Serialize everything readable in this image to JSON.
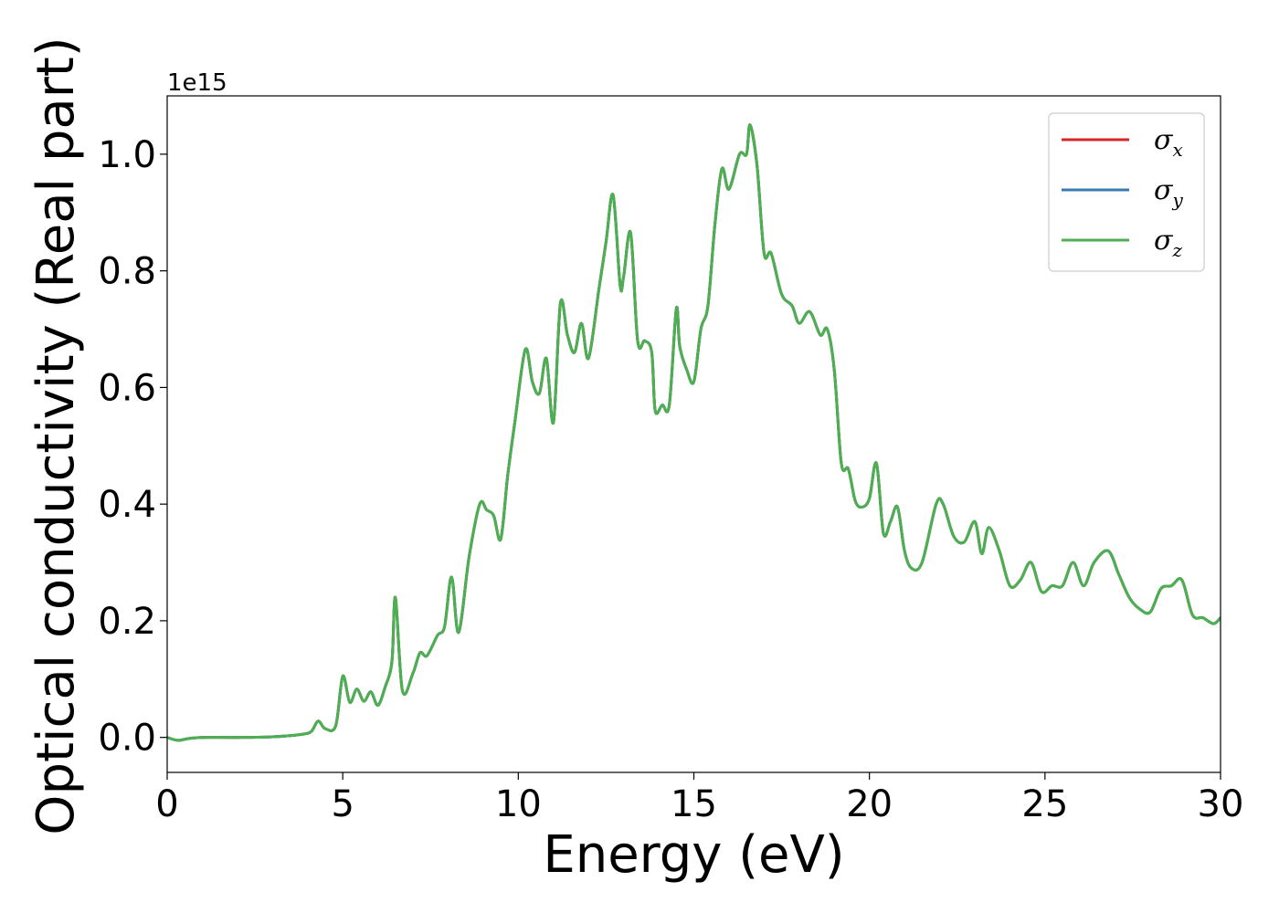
{
  "chart_data": {
    "type": "line",
    "xlabel": "Energy (eV)",
    "ylabel": "Optical conductivity (Real part)",
    "y_offset_text": "1e15",
    "xlim": [
      0,
      30
    ],
    "ylim": [
      -0.06,
      1.1
    ],
    "x_ticks": [
      "0",
      "5",
      "10",
      "15",
      "20",
      "25",
      "30"
    ],
    "y_ticks": [
      "0.0",
      "0.2",
      "0.4",
      "0.6",
      "0.8",
      "1.0"
    ],
    "grid": false,
    "legend_position": "top-right",
    "series": [
      {
        "name": "σx",
        "symbol": "σ",
        "subscript": "x",
        "color": "#d62728"
      },
      {
        "name": "σy",
        "symbol": "σ",
        "subscript": "y",
        "color": "#3a78b0"
      },
      {
        "name": "σz",
        "symbol": "σ",
        "subscript": "z",
        "color": "#4caf50"
      }
    ],
    "x": [
      0,
      0.3,
      0.6,
      1.0,
      2.0,
      3.0,
      3.8,
      4.1,
      4.3,
      4.5,
      4.8,
      5.0,
      5.2,
      5.4,
      5.6,
      5.8,
      6.0,
      6.2,
      6.4,
      6.5,
      6.7,
      7.0,
      7.2,
      7.4,
      7.7,
      7.9,
      8.1,
      8.3,
      8.6,
      8.9,
      9.1,
      9.3,
      9.5,
      9.7,
      9.9,
      10.2,
      10.4,
      10.6,
      10.8,
      11.0,
      11.2,
      11.4,
      11.6,
      11.8,
      12.0,
      12.3,
      12.5,
      12.7,
      12.9,
      13.0,
      13.2,
      13.4,
      13.6,
      13.8,
      13.9,
      14.1,
      14.3,
      14.5,
      14.6,
      14.8,
      15.0,
      15.2,
      15.4,
      15.6,
      15.8,
      16.0,
      16.3,
      16.5,
      16.6,
      16.8,
      17.0,
      17.2,
      17.5,
      17.8,
      18.0,
      18.3,
      18.6,
      18.8,
      19.0,
      19.2,
      19.4,
      19.6,
      19.8,
      20.0,
      20.2,
      20.4,
      20.6,
      20.8,
      21.0,
      21.2,
      21.5,
      21.9,
      22.1,
      22.4,
      22.7,
      23.0,
      23.2,
      23.4,
      23.7,
      24.0,
      24.3,
      24.6,
      24.9,
      25.2,
      25.5,
      25.8,
      26.1,
      26.4,
      26.8,
      27.1,
      27.4,
      27.7,
      28.0,
      28.3,
      28.6,
      28.9,
      29.2,
      29.5,
      29.8,
      30.0
    ],
    "values": [
      0.0,
      -0.005,
      -0.002,
      0.0,
      0.0,
      0.001,
      0.005,
      0.01,
      0.028,
      0.015,
      0.02,
      0.105,
      0.06,
      0.083,
      0.062,
      0.078,
      0.055,
      0.085,
      0.13,
      0.24,
      0.08,
      0.11,
      0.145,
      0.14,
      0.175,
      0.19,
      0.275,
      0.18,
      0.31,
      0.4,
      0.39,
      0.38,
      0.34,
      0.45,
      0.54,
      0.665,
      0.61,
      0.59,
      0.65,
      0.54,
      0.745,
      0.69,
      0.66,
      0.71,
      0.65,
      0.77,
      0.85,
      0.93,
      0.775,
      0.79,
      0.865,
      0.68,
      0.68,
      0.66,
      0.56,
      0.57,
      0.57,
      0.735,
      0.67,
      0.63,
      0.61,
      0.7,
      0.74,
      0.88,
      0.975,
      0.94,
      1.0,
      1.0,
      1.05,
      0.98,
      0.83,
      0.83,
      0.76,
      0.74,
      0.71,
      0.73,
      0.69,
      0.7,
      0.63,
      0.47,
      0.46,
      0.405,
      0.395,
      0.41,
      0.47,
      0.35,
      0.37,
      0.395,
      0.32,
      0.29,
      0.3,
      0.4,
      0.4,
      0.345,
      0.335,
      0.37,
      0.315,
      0.36,
      0.32,
      0.26,
      0.27,
      0.3,
      0.25,
      0.26,
      0.26,
      0.3,
      0.26,
      0.3,
      0.32,
      0.28,
      0.24,
      0.22,
      0.215,
      0.255,
      0.26,
      0.27,
      0.21,
      0.205,
      0.195,
      0.205
    ]
  }
}
